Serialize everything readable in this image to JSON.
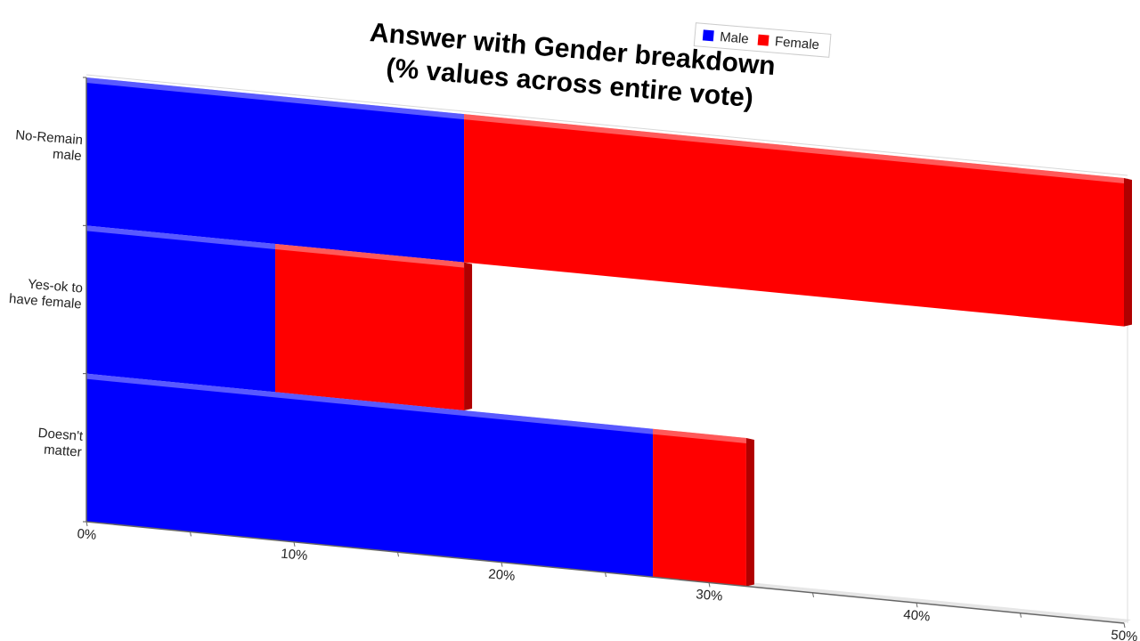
{
  "chart_data": {
    "type": "bar",
    "orientation": "horizontal",
    "stacked": true,
    "title_lines": [
      "Answer with Gender breakdown",
      "(% values across entire vote)"
    ],
    "categories": [
      {
        "lines": [
          "No-Remain",
          "male"
        ]
      },
      {
        "lines": [
          "Yes-ok to",
          "have female"
        ]
      },
      {
        "lines": [
          "Doesn't",
          "matter"
        ]
      }
    ],
    "series": [
      {
        "name": "Male",
        "color": "#0000ff",
        "values": [
          18.2,
          9.1,
          27.3
        ]
      },
      {
        "name": "Female",
        "color": "#ff0000",
        "values": [
          31.8,
          9.1,
          4.5
        ]
      }
    ],
    "x_ticks": [
      "0%",
      "10%",
      "20%",
      "30%",
      "40%",
      "50%"
    ],
    "xlim": [
      0,
      50
    ],
    "legend_position": "top-right",
    "grid": false
  }
}
